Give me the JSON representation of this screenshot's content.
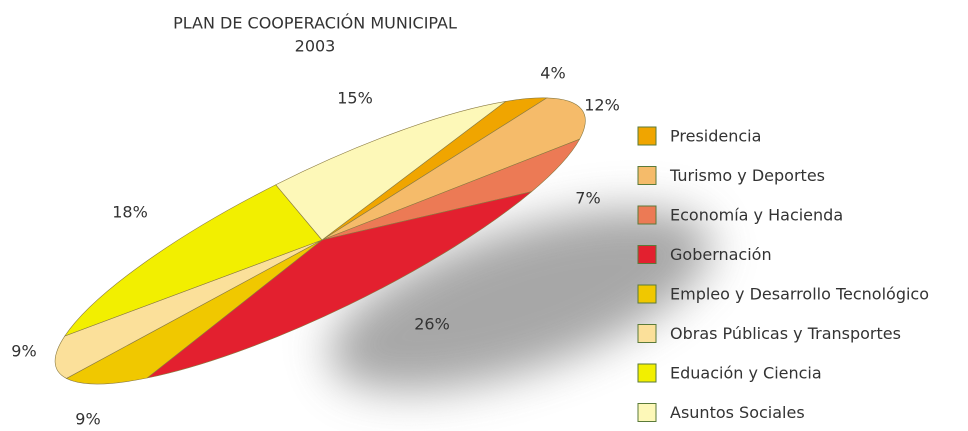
{
  "chart_data": {
    "type": "pie",
    "title": "PLAN DE COOPERACIÓN MUNICIPAL",
    "subtitle": "2003",
    "categories": [
      "Presidencia",
      "Turismo y Deportes",
      "Economía y Hacienda",
      "Gobernación",
      "Empleo y Desarrollo Tecnológico",
      "Obras Públicas y Transportes",
      "Eduación y Ciencia",
      "Asuntos Sociales"
    ],
    "values": [
      4,
      12,
      7,
      26,
      9,
      9,
      18,
      15
    ],
    "value_labels": [
      "4%",
      "12%",
      "7%",
      "26%",
      "9%",
      "9%",
      "18%",
      "15%"
    ],
    "colors": [
      "#f0a500",
      "#f5bb6a",
      "#ec7a55",
      "#e3202f",
      "#f0c800",
      "#fbe09a",
      "#f2ef00",
      "#fdf8b8"
    ],
    "legend": "right"
  }
}
